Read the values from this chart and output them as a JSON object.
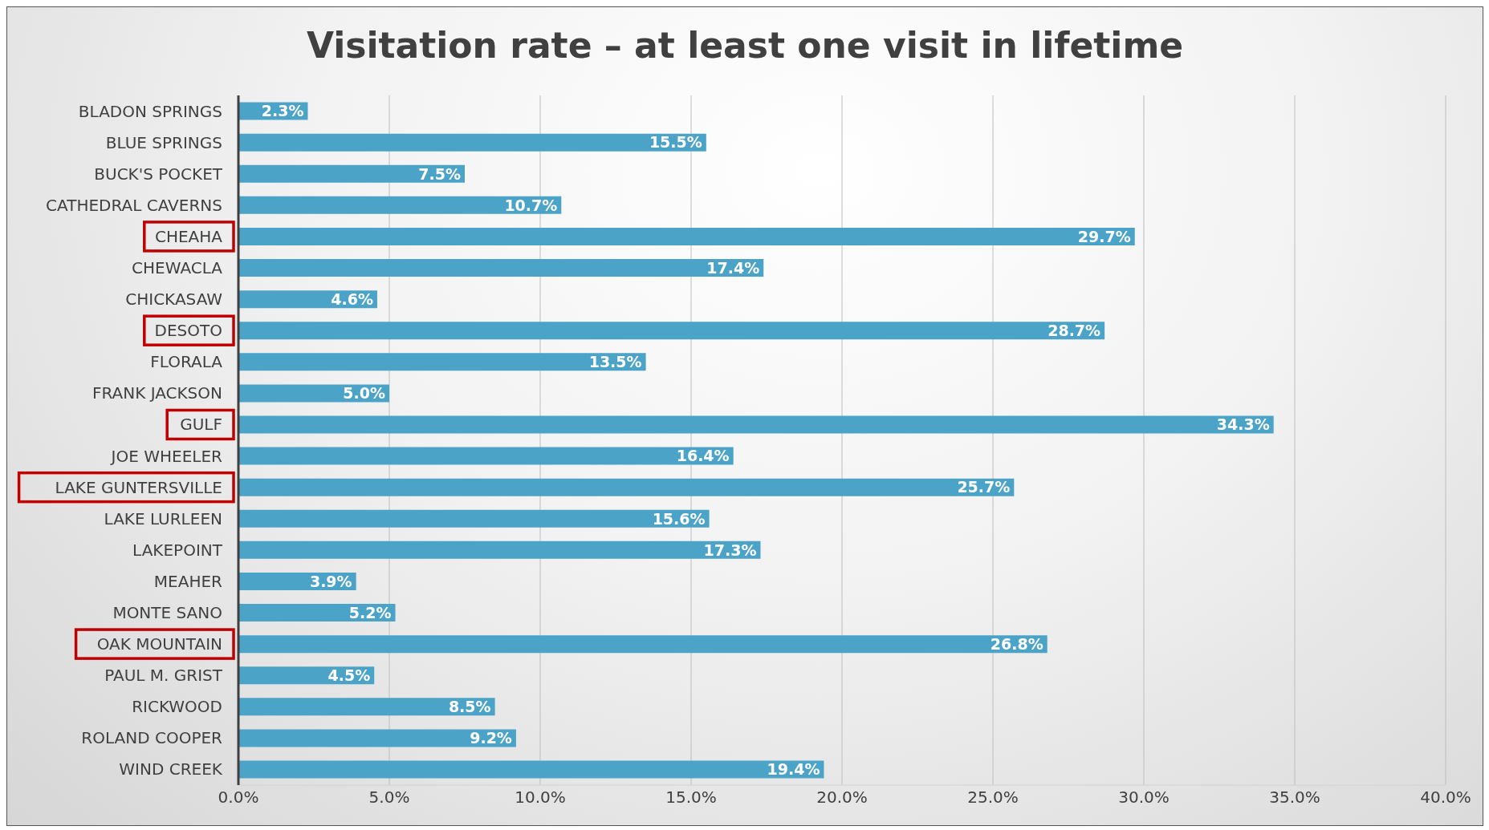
{
  "chart_data": {
    "type": "bar",
    "orientation": "horizontal",
    "title": "Visitation rate – at least one visit in lifetime",
    "categories": [
      "BLADON SPRINGS",
      "BLUE SPRINGS",
      "BUCK'S POCKET",
      "CATHEDRAL CAVERNS",
      "CHEAHA",
      "CHEWACLA",
      "CHICKASAW",
      "DESOTO",
      "FLORALA",
      "FRANK JACKSON",
      "GULF",
      "JOE WHEELER",
      "LAKE GUNTERSVILLE",
      "LAKE LURLEEN",
      "LAKEPOINT",
      "MEAHER",
      "MONTE SANO",
      "OAK MOUNTAIN",
      "PAUL M. GRIST",
      "RICKWOOD",
      "ROLAND COOPER",
      "WIND CREEK"
    ],
    "values": [
      2.3,
      15.5,
      7.5,
      10.7,
      29.7,
      17.4,
      4.6,
      28.7,
      13.5,
      5.0,
      34.3,
      16.4,
      25.7,
      15.6,
      17.3,
      3.9,
      5.2,
      26.8,
      4.5,
      8.5,
      9.2,
      19.4
    ],
    "value_labels": [
      "2.3%",
      "15.5%",
      "7.5%",
      "10.7%",
      "29.7%",
      "17.4%",
      "4.6%",
      "28.7%",
      "13.5%",
      "5.0%",
      "34.3%",
      "16.4%",
      "25.7%",
      "15.6%",
      "17.3%",
      "3.9%",
      "5.2%",
      "26.8%",
      "4.5%",
      "8.5%",
      "9.2%",
      "19.4%"
    ],
    "color": "#4ba3c7",
    "xlim": [
      0,
      40
    ],
    "xticks": [
      {
        "value": 0,
        "label": "0.0%"
      },
      {
        "value": 5,
        "label": "5.0%"
      },
      {
        "value": 10,
        "label": "10.0%"
      },
      {
        "value": 15,
        "label": "15.0%"
      },
      {
        "value": 20,
        "label": "20.0%"
      },
      {
        "value": 25,
        "label": "25.0%"
      },
      {
        "value": 30,
        "label": "30.0%"
      },
      {
        "value": 35,
        "label": "35.0%"
      },
      {
        "value": 40,
        "label": "40.0%"
      }
    ],
    "grid": "x"
  }
}
